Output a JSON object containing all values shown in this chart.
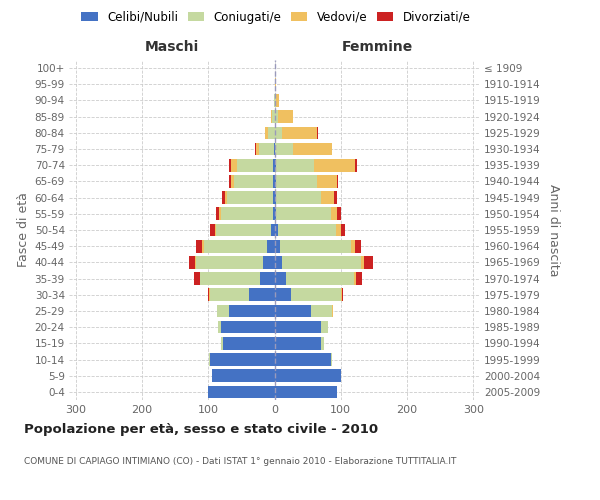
{
  "age_groups": [
    "0-4",
    "5-9",
    "10-14",
    "15-19",
    "20-24",
    "25-29",
    "30-34",
    "35-39",
    "40-44",
    "45-49",
    "50-54",
    "55-59",
    "60-64",
    "65-69",
    "70-74",
    "75-79",
    "80-84",
    "85-89",
    "90-94",
    "95-99",
    "100+"
  ],
  "birth_years": [
    "2005-2009",
    "2000-2004",
    "1995-1999",
    "1990-1994",
    "1985-1989",
    "1980-1984",
    "1975-1979",
    "1970-1974",
    "1965-1969",
    "1960-1964",
    "1955-1959",
    "1950-1954",
    "1945-1949",
    "1940-1944",
    "1935-1939",
    "1930-1934",
    "1925-1929",
    "1920-1924",
    "1915-1919",
    "1910-1914",
    "≤ 1909"
  ],
  "male_celibe": [
    100,
    95,
    98,
    78,
    80,
    68,
    38,
    22,
    18,
    12,
    6,
    3,
    3,
    3,
    2,
    1,
    0,
    0,
    0,
    0,
    0
  ],
  "male_coniugato": [
    0,
    0,
    1,
    2,
    5,
    18,
    60,
    90,
    100,
    95,
    82,
    78,
    68,
    58,
    55,
    22,
    10,
    4,
    1,
    0,
    0
  ],
  "male_vedovo": [
    0,
    0,
    0,
    0,
    0,
    1,
    1,
    1,
    2,
    2,
    2,
    2,
    3,
    4,
    8,
    5,
    5,
    2,
    0,
    0,
    0
  ],
  "male_divorziato": [
    0,
    0,
    0,
    0,
    0,
    0,
    2,
    9,
    9,
    9,
    8,
    6,
    5,
    3,
    3,
    1,
    0,
    0,
    0,
    0,
    0
  ],
  "female_nubile": [
    95,
    100,
    85,
    70,
    70,
    55,
    25,
    18,
    12,
    8,
    5,
    3,
    2,
    2,
    2,
    0,
    0,
    1,
    1,
    0,
    0
  ],
  "female_coniugata": [
    0,
    0,
    1,
    5,
    10,
    32,
    75,
    102,
    118,
    108,
    88,
    82,
    68,
    62,
    58,
    28,
    12,
    5,
    2,
    1,
    0
  ],
  "female_vedova": [
    0,
    0,
    0,
    0,
    0,
    1,
    2,
    3,
    5,
    5,
    8,
    10,
    20,
    30,
    62,
    58,
    52,
    22,
    4,
    1,
    1
  ],
  "female_divorziata": [
    0,
    0,
    0,
    0,
    0,
    1,
    2,
    9,
    13,
    9,
    5,
    5,
    5,
    2,
    3,
    1,
    1,
    0,
    0,
    0,
    0
  ],
  "color_celibe": "#4472C4",
  "color_coniugato": "#c5d9a0",
  "color_vedovo": "#f0c060",
  "color_divorziato": "#cc2222",
  "xlim": 310,
  "title": "Popolazione per età, sesso e stato civile - 2010",
  "subtitle": "COMUNE DI CAPIAGO INTIMIANO (CO) - Dati ISTAT 1° gennaio 2010 - Elaborazione TUTTITALIA.IT",
  "label_maschi": "Maschi",
  "label_femmine": "Femmine",
  "ylabel_left": "Fasce di età",
  "ylabel_right": "Anni di nascita",
  "legend_labels": [
    "Celibi/Nubili",
    "Coniugati/e",
    "Vedovi/e",
    "Divorziati/e"
  ],
  "bg_color": "#ffffff",
  "text_color": "#666666",
  "grid_color": "#cccccc"
}
